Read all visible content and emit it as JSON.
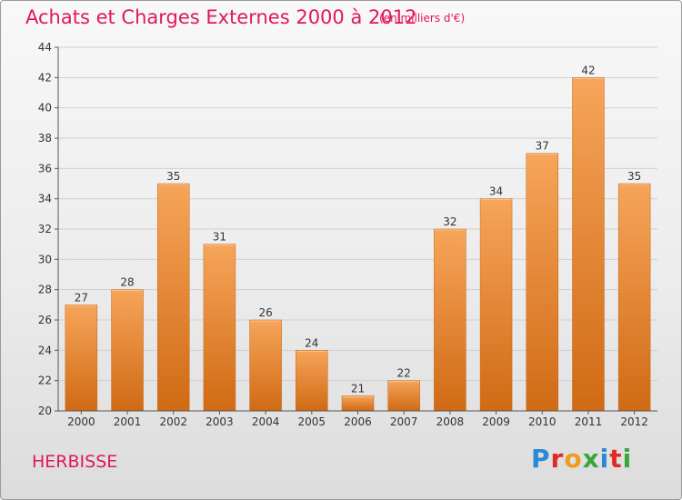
{
  "chart_data": {
    "type": "bar",
    "title": "Achats et Charges Externes 2000 à 2012",
    "subtitle": "(en milliers d'€)",
    "categories": [
      "2000",
      "2001",
      "2002",
      "2003",
      "2004",
      "2005",
      "2006",
      "2007",
      "2008",
      "2009",
      "2010",
      "2011",
      "2012"
    ],
    "values": [
      27,
      28,
      35,
      31,
      26,
      24,
      21,
      22,
      32,
      34,
      37,
      42,
      35
    ],
    "ylim": [
      20,
      44
    ],
    "yticks": [
      20,
      22,
      24,
      26,
      28,
      30,
      32,
      34,
      36,
      38,
      40,
      42,
      44
    ],
    "grid": true,
    "bar_color": "#ee8a30"
  },
  "footer": {
    "commune": "HERBISSE",
    "logo": "Proxiti"
  }
}
